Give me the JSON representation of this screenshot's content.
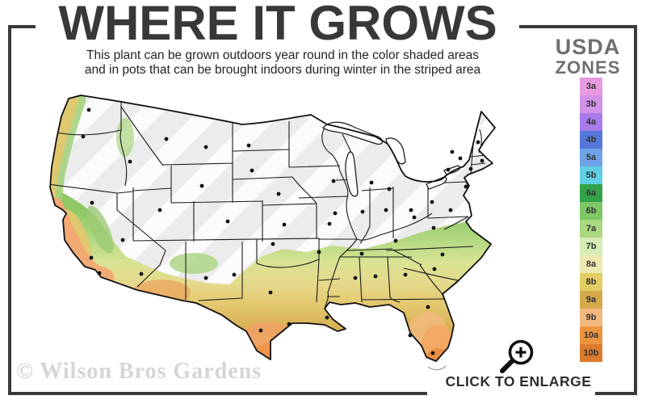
{
  "header": {
    "title": "WHERE IT GROWS",
    "subtitle_line1": "This plant can be grown outdoors year round in the color shaded areas",
    "subtitle_line2": "and in pots that can be brought indoors during winter in the striped area"
  },
  "legend": {
    "title_line1": "USDA",
    "title_line2": "ZONES",
    "zones": [
      {
        "label": "3a",
        "color": "#E79ADF"
      },
      {
        "label": "3b",
        "color": "#D292E8"
      },
      {
        "label": "4a",
        "color": "#A77BEA"
      },
      {
        "label": "4b",
        "color": "#5577DB"
      },
      {
        "label": "5a",
        "color": "#6FA3E8"
      },
      {
        "label": "5b",
        "color": "#60CFE4"
      },
      {
        "label": "6a",
        "color": "#33A348"
      },
      {
        "label": "6b",
        "color": "#7FC765"
      },
      {
        "label": "7a",
        "color": "#A9D87F"
      },
      {
        "label": "7b",
        "color": "#D6EDB4"
      },
      {
        "label": "8a",
        "color": "#EDE9B0"
      },
      {
        "label": "8b",
        "color": "#E2CD62"
      },
      {
        "label": "9a",
        "color": "#D3A94A"
      },
      {
        "label": "9b",
        "color": "#F3B87E"
      },
      {
        "label": "10a",
        "color": "#EC9340"
      },
      {
        "label": "10b",
        "color": "#DC7B2E"
      }
    ]
  },
  "footer": {
    "watermark": "© Wilson Bros Gardens",
    "enlarge_label": "CLICK TO ENLARGE"
  },
  "colors": {
    "frame": "#3a3a3a",
    "striped_area_base": "#ececec",
    "striped_area_stripe": "#fbfbfb"
  },
  "chart_data": {
    "type": "map",
    "title": "WHERE IT GROWS",
    "region": "Continental United States",
    "legend_title": "USDA ZONES",
    "zone_scale": [
      "3a",
      "3b",
      "4a",
      "4b",
      "5a",
      "5b",
      "6a",
      "6b",
      "7a",
      "7b",
      "8a",
      "8b",
      "9a",
      "9b",
      "10a",
      "10b"
    ],
    "shaded_meaning": "color shaded areas = grows outdoors year round",
    "striped_meaning": "striped area = grow in pots, bring indoors during winter",
    "colored_regions": "Pacific coast (WA, OR, CA), desert Southwest, southern Plains, Texas, Gulf Coast, Southeast, Florida, coastal Mid-Atlantic",
    "striped_regions": "Northern, Mountain and Midwestern states"
  }
}
